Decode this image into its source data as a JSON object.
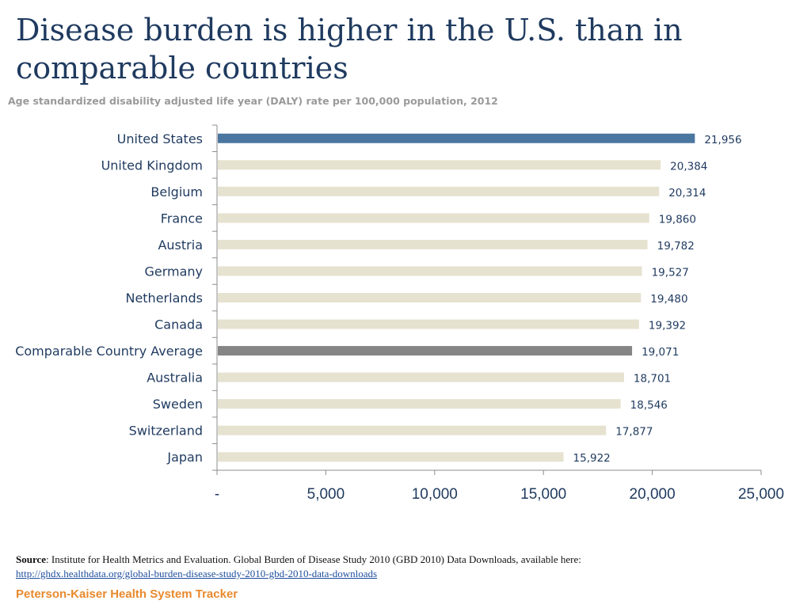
{
  "title": "Disease burden is higher in the U.S. than in comparable countries",
  "subtitle": "Age standardized disability adjusted life year (DALY) rate per 100,000 population, 2012",
  "colors": {
    "highlight": "#4a76a0",
    "average": "#858585",
    "default": "#e6e2d0",
    "axis": "#8c8c8c",
    "label_text": "#1f3a5f",
    "value_text": "#1f3a5f"
  },
  "chart_data": {
    "type": "bar",
    "orientation": "horizontal",
    "title": "Disease burden is higher in the U.S. than in comparable countries",
    "subtitle": "Age standardized disability adjusted life year (DALY) rate per 100,000 population, 2012",
    "categories": [
      "United States",
      "United Kingdom",
      "Belgium",
      "France",
      "Austria",
      "Germany",
      "Netherlands",
      "Canada",
      "Comparable Country Average",
      "Australia",
      "Sweden",
      "Switzerland",
      "Japan"
    ],
    "values": [
      21956,
      20384,
      20314,
      19860,
      19782,
      19527,
      19480,
      19392,
      19071,
      18701,
      18546,
      17877,
      15922
    ],
    "value_labels": [
      "21,956",
      "20,384",
      "20,314",
      "19,860",
      "19,782",
      "19,527",
      "19,480",
      "19,392",
      "19,071",
      "18,701",
      "18,546",
      "17,877",
      "15,922"
    ],
    "bar_styles": [
      "highlight",
      "default",
      "default",
      "default",
      "default",
      "default",
      "default",
      "default",
      "average",
      "default",
      "default",
      "default",
      "default"
    ],
    "xlim": [
      0,
      25000
    ],
    "xticks": [
      0,
      5000,
      10000,
      15000,
      20000,
      25000
    ],
    "xtick_labels": [
      "-",
      "5,000",
      "10,000",
      "15,000",
      "20,000",
      "25,000"
    ],
    "xlabel": "",
    "ylabel": "",
    "grid": false,
    "legend": "none"
  },
  "source": {
    "label": "Source",
    "text": ": Institute for Health Metrics and Evaluation. Global Burden of Disease Study 2010 (GBD 2010) Data Downloads, available here:",
    "link": "http://ghdx.healthdata.org/global-burden-disease-study-2010-gbd-2010-data-downloads"
  },
  "brand": "Peterson-Kaiser Health System Tracker"
}
